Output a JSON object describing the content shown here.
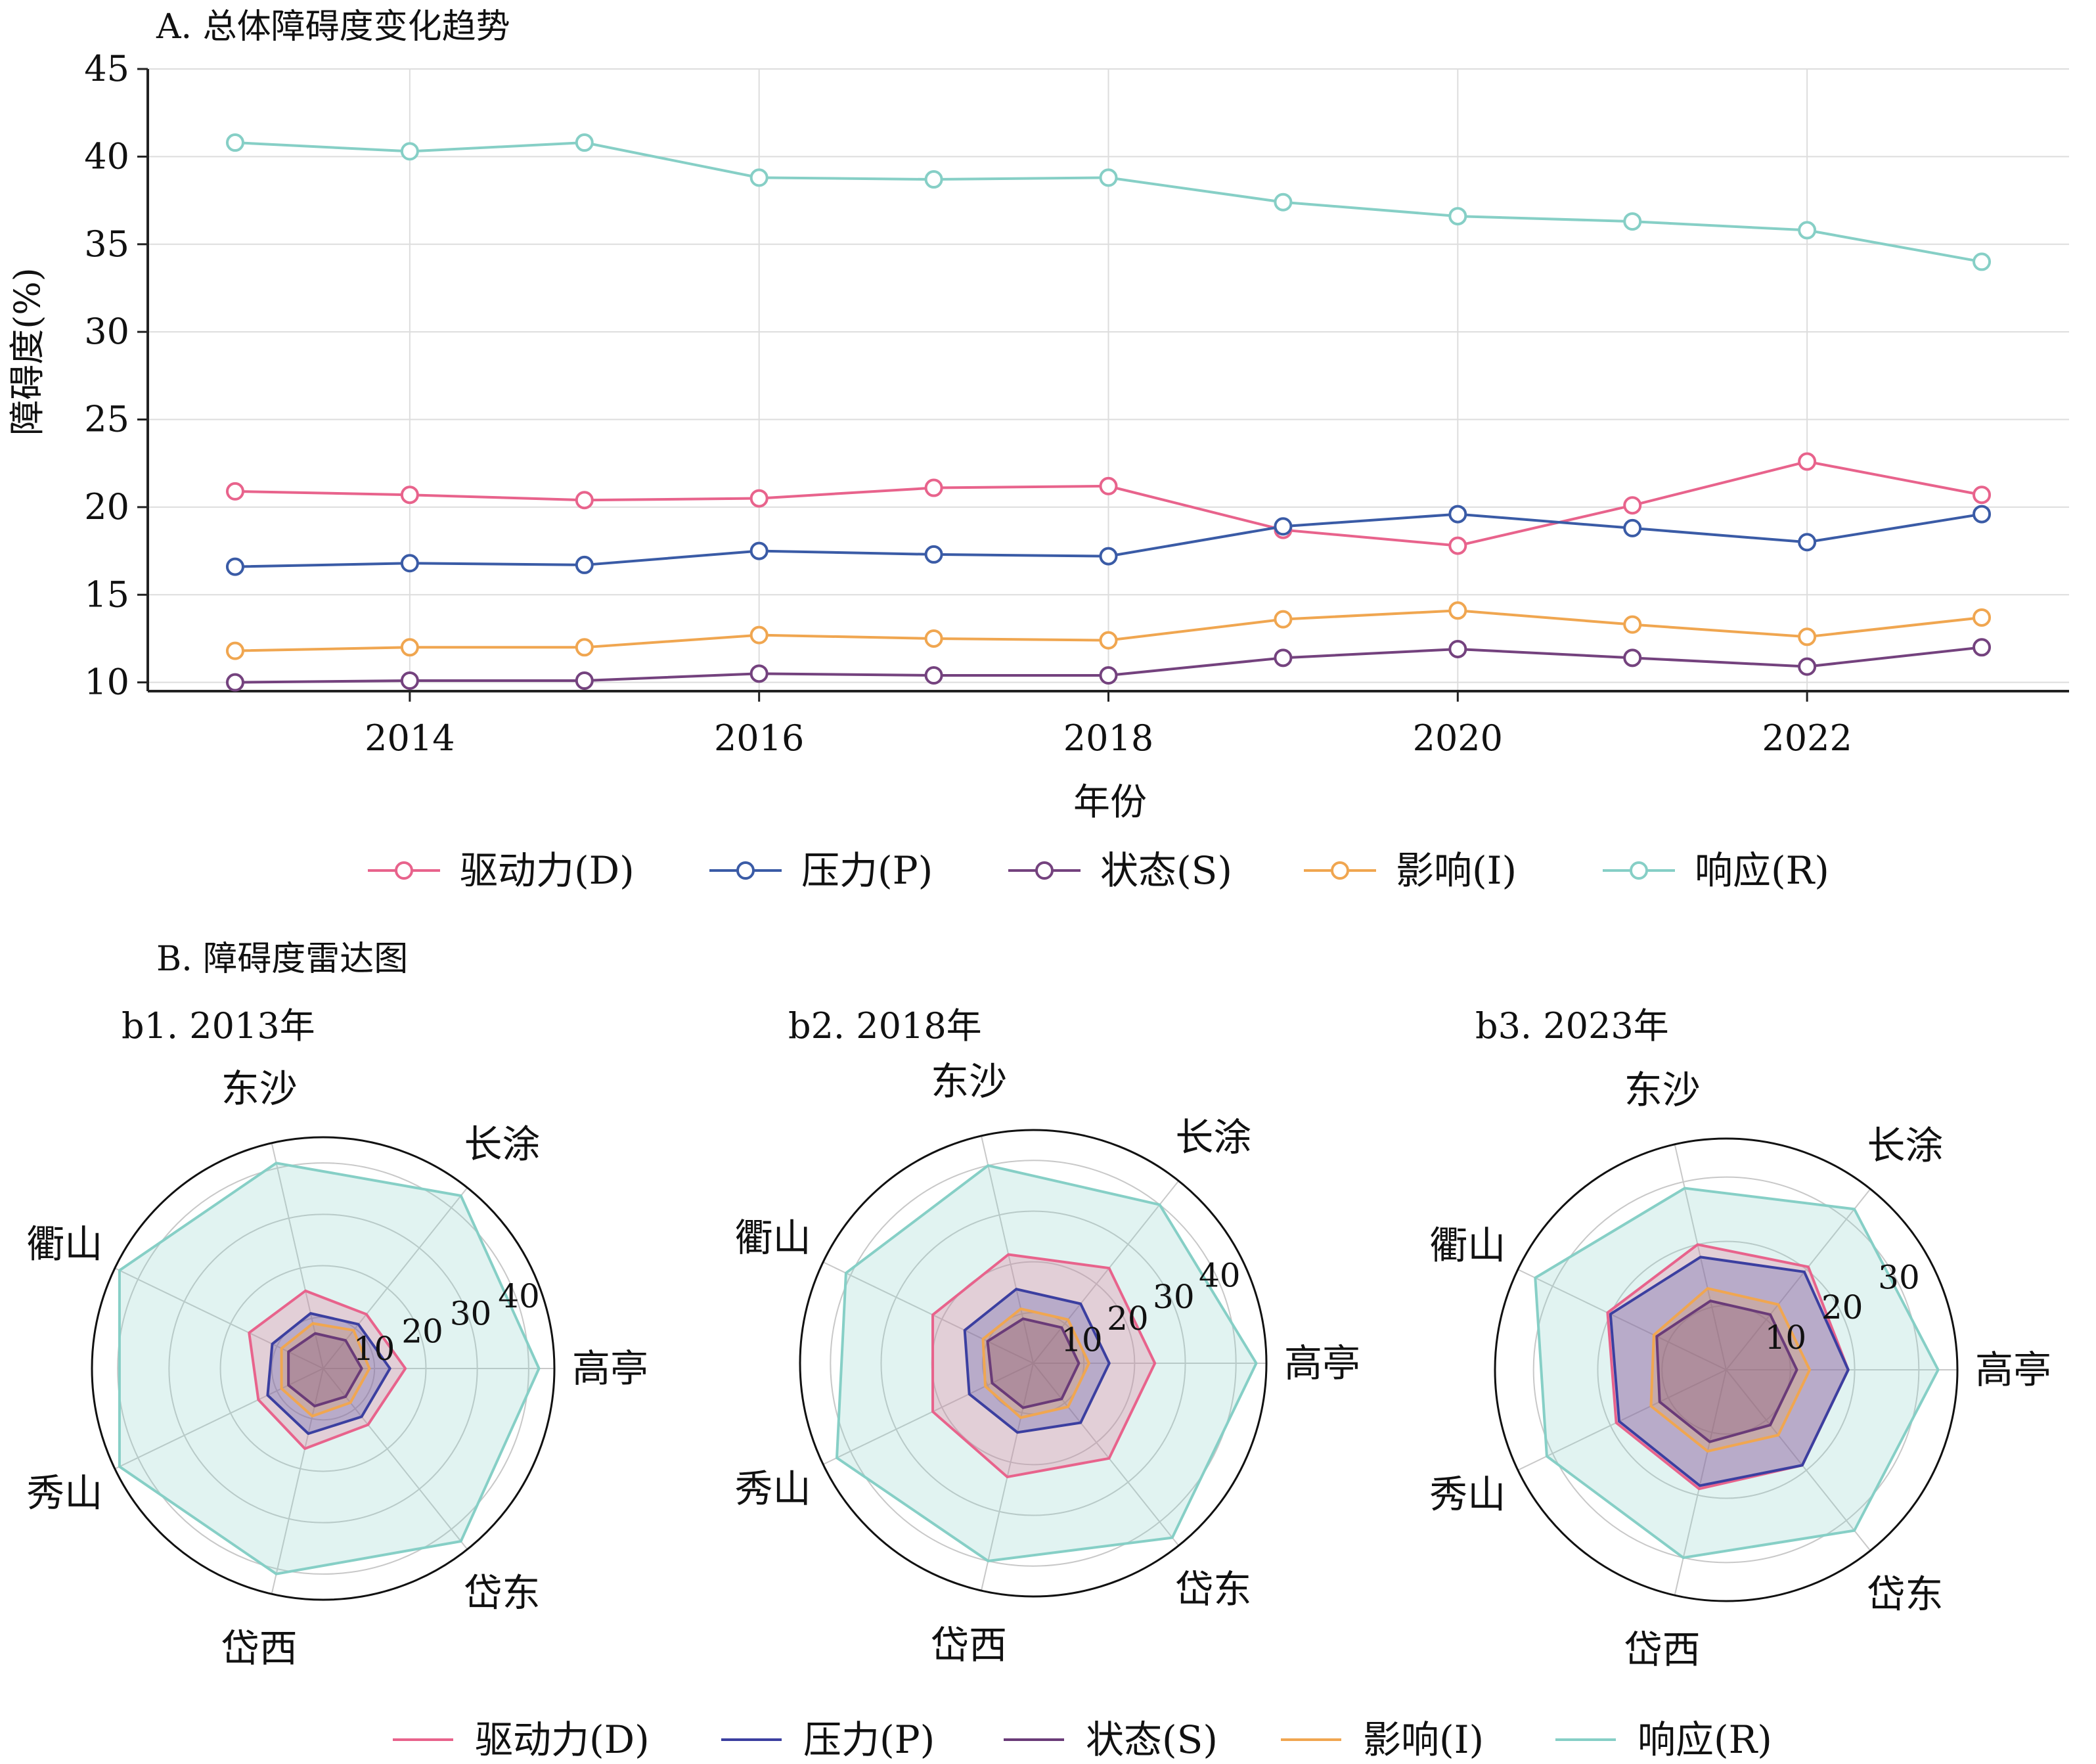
{
  "colors": {
    "D_line": "#e8638c",
    "P_line": "#3a5ba6",
    "S_line": "#74427e",
    "I_line": "#f0a650",
    "R_line": "#86cfc6",
    "D_radar": "#e8638c",
    "P_radar": "#3b3fa0",
    "S_radar": "#6a3b78",
    "I_radar": "#f0a650",
    "R_radar": "#86cfc6",
    "axis": "#222222",
    "grid": "#dddddd"
  },
  "chart_data": [
    {
      "id": "A",
      "type": "line",
      "title": "A. 总体障碍度变化趋势",
      "xlabel": "年份",
      "ylabel": "障碍度(%)",
      "x": [
        2013,
        2014,
        2015,
        2016,
        2017,
        2018,
        2019,
        2020,
        2021,
        2022,
        2023
      ],
      "xticks": [
        2014,
        2016,
        2018,
        2020,
        2022
      ],
      "xtick_labels": [
        "2014",
        "2016",
        "2018",
        "2020",
        "2022"
      ],
      "yticks": [
        10,
        15,
        20,
        25,
        30,
        35,
        40,
        45
      ],
      "ytick_labels": [
        "10",
        "15",
        "20",
        "25",
        "30",
        "35",
        "40",
        "45"
      ],
      "xlim": [
        2012.5,
        2023.5
      ],
      "ylim": [
        9.5,
        45
      ],
      "grid": true,
      "legend_position": "bottom",
      "series": [
        {
          "key": "D",
          "name": "驱动力(D)",
          "values": [
            20.9,
            20.7,
            20.4,
            20.5,
            21.1,
            21.2,
            18.7,
            17.8,
            20.1,
            22.6,
            20.7
          ]
        },
        {
          "key": "P",
          "name": "压力(P)",
          "values": [
            16.6,
            16.8,
            16.7,
            17.5,
            17.3,
            17.2,
            18.9,
            19.6,
            18.8,
            18.0,
            19.6
          ]
        },
        {
          "key": "S",
          "name": "状态(S)",
          "values": [
            10.0,
            10.1,
            10.1,
            10.5,
            10.4,
            10.4,
            11.4,
            11.9,
            11.4,
            10.9,
            12.0
          ]
        },
        {
          "key": "I",
          "name": "影响(I)",
          "values": [
            11.8,
            12.0,
            12.0,
            12.7,
            12.5,
            12.4,
            13.6,
            14.1,
            13.3,
            12.6,
            13.7
          ]
        },
        {
          "key": "R",
          "name": "响应(R)",
          "values": [
            40.8,
            40.3,
            40.8,
            38.8,
            38.7,
            38.8,
            37.4,
            36.6,
            36.3,
            35.8,
            34.0
          ]
        }
      ]
    },
    {
      "id": "b1",
      "type": "radar",
      "title": "b1. 2013年",
      "categories": [
        "高亭",
        "长涂",
        "东沙",
        "衢山",
        "秀山",
        "岱西",
        "岱东"
      ],
      "rmax": 45,
      "rticks": [
        10,
        20,
        30,
        40
      ],
      "rtick_labels": [
        "10",
        "20",
        "30",
        "40"
      ],
      "series": [
        {
          "key": "D",
          "name": "驱动力(D)",
          "values": [
            16,
            13.5,
            15.5,
            16,
            14,
            16,
            14
          ]
        },
        {
          "key": "P",
          "name": "压力(P)",
          "values": [
            13,
            11,
            11,
            11,
            12,
            13,
            12
          ]
        },
        {
          "key": "S",
          "name": "状态(S)",
          "values": [
            7.5,
            7,
            7,
            7.5,
            7.5,
            7.5,
            7
          ]
        },
        {
          "key": "I",
          "name": "影响(I)",
          "values": [
            9,
            9.5,
            9,
            9,
            9,
            9.5,
            8.5
          ]
        },
        {
          "key": "R",
          "name": "响应(R)",
          "values": [
            42,
            43,
            41,
            44,
            44,
            41,
            43
          ]
        }
      ]
    },
    {
      "id": "b2",
      "type": "radar",
      "title": "b2. 2018年",
      "categories": [
        "高亭",
        "长涂",
        "东沙",
        "衢山",
        "秀山",
        "岱西",
        "岱东"
      ],
      "rmax": 46,
      "rticks": [
        10,
        20,
        30,
        40
      ],
      "rtick_labels": [
        "10",
        "20",
        "30",
        "40"
      ],
      "series": [
        {
          "key": "D",
          "name": "驱动力(D)",
          "values": [
            24,
            24,
            22,
            22,
            22,
            23,
            24
          ]
        },
        {
          "key": "P",
          "name": "压力(P)",
          "values": [
            15,
            15,
            15,
            15,
            14,
            14,
            15
          ]
        },
        {
          "key": "S",
          "name": "状态(S)",
          "values": [
            9,
            9,
            9,
            10,
            9,
            9,
            9
          ]
        },
        {
          "key": "I",
          "name": "影响(I)",
          "values": [
            11,
            11,
            11,
            11,
            10.5,
            11,
            11
          ]
        },
        {
          "key": "R",
          "name": "响应(R)",
          "values": [
            44,
            40,
            40,
            41,
            43,
            40,
            44
          ]
        }
      ]
    },
    {
      "id": "b3",
      "type": "radar",
      "title": "b3. 2023年",
      "categories": [
        "高亭",
        "长涂",
        "东沙",
        "衢山",
        "秀山",
        "岱西",
        "岱东"
      ],
      "rmax": 36,
      "rticks": [
        10,
        20,
        30
      ],
      "rtick_labels": [
        "10",
        "20",
        "30"
      ],
      "series": [
        {
          "key": "D",
          "name": "驱动力(D)",
          "values": [
            19,
            20.5,
            20,
            20.5,
            19,
            19,
            19
          ]
        },
        {
          "key": "P",
          "name": "压力(P)",
          "values": [
            19,
            19.5,
            18,
            20,
            18.5,
            18.5,
            19
          ]
        },
        {
          "key": "S",
          "name": "状态(S)",
          "values": [
            11,
            11,
            11,
            12,
            11.5,
            11.5,
            11
          ]
        },
        {
          "key": "I",
          "name": "影响(I)",
          "values": [
            13,
            13,
            13,
            12.5,
            13,
            13,
            13
          ]
        },
        {
          "key": "R",
          "name": "响应(R)",
          "values": [
            33,
            32,
            29,
            33,
            31,
            30,
            32
          ]
        }
      ]
    }
  ],
  "section_b_title": "B. 障碍度雷达图"
}
